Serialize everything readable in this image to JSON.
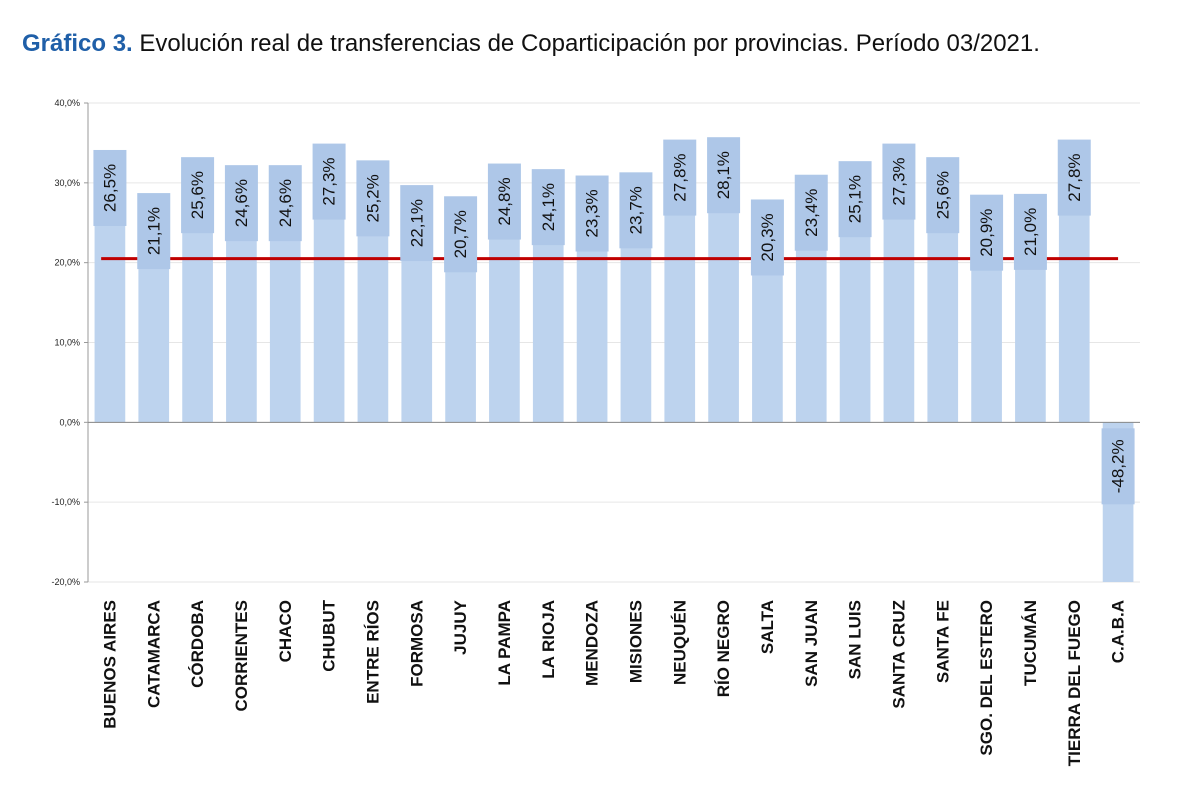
{
  "title": {
    "lead": "Gráfico 3.",
    "rest": " Evolución real de transferencias de Coparticipación por provincias. Período 03/2021."
  },
  "colors": {
    "bar": "#bdd3ee",
    "label_box": "#aec7e8",
    "reference_line": "#c00000",
    "grid": "#e6e6e6",
    "title_accent": "#1f5fa8"
  },
  "chart_data": {
    "type": "bar",
    "title": "Evolución real de transferencias de Coparticipación por provincias. Período 03/2021.",
    "xlabel": "",
    "ylabel": "",
    "ylim": [
      -20,
      40
    ],
    "yticks": [
      40,
      30,
      20,
      10,
      0,
      -10,
      -20
    ],
    "ytick_labels": [
      "40,0%",
      "30,0%",
      "20,0%",
      "10,0%",
      "0,0%",
      "-10,0%",
      "-20,0%"
    ],
    "grid": true,
    "categories": [
      "BUENOS AIRES",
      "CATAMARCA",
      "CÓRDOBA",
      "CORRIENTES",
      "CHACO",
      "CHUBUT",
      "ENTRE RÍOS",
      "FORMOSA",
      "JUJUY",
      "LA PAMPA",
      "LA RIOJA",
      "MENDOZA",
      "MISIONES",
      "NEUQUÉN",
      "RÍO NEGRO",
      "SALTA",
      "SAN JUAN",
      "SAN LUIS",
      "SANTA CRUZ",
      "SANTA FE",
      "SGO. DEL ESTERO",
      "TUCUMÁN",
      "TIERRA DEL FUEGO",
      "C.A.B.A"
    ],
    "values": [
      26.5,
      21.1,
      25.6,
      24.6,
      24.6,
      27.3,
      25.2,
      22.1,
      20.7,
      24.8,
      24.1,
      23.3,
      23.7,
      27.8,
      28.1,
      20.3,
      23.4,
      25.1,
      27.3,
      25.6,
      20.9,
      21.0,
      27.8,
      -48.2
    ],
    "data_labels": [
      "26,5%",
      "21,1%",
      "25,6%",
      "24,6%",
      "24,6%",
      "27,3%",
      "25,2%",
      "22,1%",
      "20,7%",
      "24,8%",
      "24,1%",
      "23,3%",
      "23,7%",
      "27,8%",
      "28,1%",
      "20,3%",
      "23,4%",
      "25,1%",
      "27,3%",
      "25,6%",
      "20,9%",
      "21,0%",
      "27,8%",
      "-48,2%"
    ],
    "reference_line": 20.5
  }
}
